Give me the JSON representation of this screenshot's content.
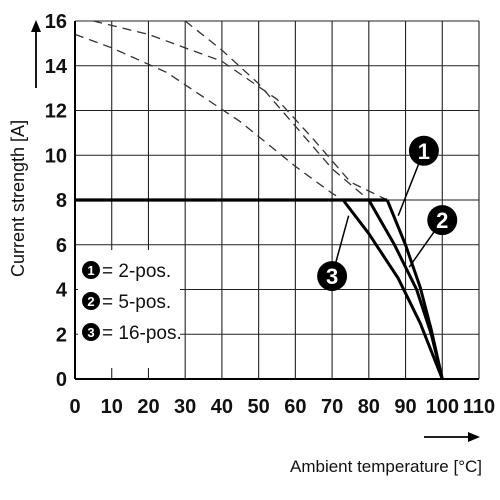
{
  "chart_data": {
    "type": "line",
    "xlabel": "Ambient temperature [°C]",
    "ylabel": "Current strength [A]",
    "xlim": [
      0,
      110
    ],
    "ylim": [
      0,
      16
    ],
    "xticks": [
      0,
      10,
      20,
      30,
      40,
      50,
      60,
      70,
      80,
      90,
      100,
      110
    ],
    "yticks": [
      0,
      2,
      4,
      6,
      8,
      10,
      12,
      14,
      16
    ],
    "grid": true,
    "legend_position": "bottom-left",
    "legend": [
      {
        "marker": "1",
        "label": "= 2-pos."
      },
      {
        "marker": "2",
        "label": "= 5-pos."
      },
      {
        "marker": "3",
        "label": "= 16-pos."
      }
    ],
    "limit": {
      "name": "",
      "x": [
        0,
        85
      ],
      "y": [
        8,
        8
      ]
    },
    "series": [
      {
        "marker": "1",
        "dashed": {
          "x": [
            5,
            20,
            40,
            55,
            65,
            75,
            85
          ],
          "y": [
            16,
            15.4,
            14.2,
            12.5,
            10.7,
            8.8,
            8
          ]
        },
        "solid": {
          "x": [
            85,
            90,
            94,
            97,
            100
          ],
          "y": [
            8,
            6,
            4.1,
            2.2,
            0
          ]
        }
      },
      {
        "marker": "2",
        "dashed": {
          "x": [
            30,
            40,
            50,
            60,
            70,
            80
          ],
          "y": [
            16,
            14.7,
            13.2,
            11.3,
            9.4,
            8
          ]
        },
        "solid": {
          "x": [
            80,
            87,
            93,
            97,
            100
          ],
          "y": [
            8,
            6,
            4,
            2,
            0
          ]
        }
      },
      {
        "marker": "3",
        "dashed": {
          "x": [
            0,
            10,
            25,
            45,
            60,
            70,
            73
          ],
          "y": [
            15.4,
            14.8,
            13.7,
            11.5,
            9.5,
            8.3,
            8
          ]
        },
        "solid": {
          "x": [
            73,
            80,
            88,
            94,
            100
          ],
          "y": [
            8,
            6.5,
            4.5,
            2.5,
            0
          ]
        }
      }
    ],
    "callouts": [
      {
        "marker": "1",
        "at_x": 88,
        "at_y": 7.3,
        "label_x": 95,
        "label_y": 10.2
      },
      {
        "marker": "2",
        "at_x": 91,
        "at_y": 5,
        "label_x": 100,
        "label_y": 7.1
      },
      {
        "marker": "3",
        "at_x": 74.5,
        "at_y": 7.3,
        "label_x": 70,
        "label_y": 4.6
      }
    ]
  }
}
